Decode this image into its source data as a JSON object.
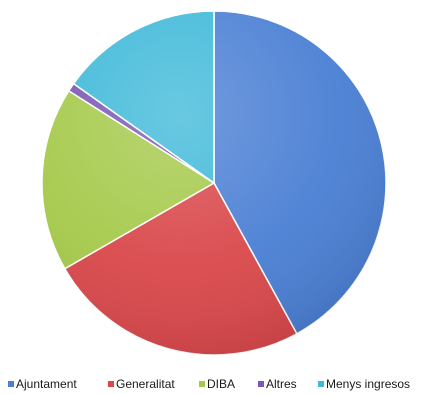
{
  "chart_data": {
    "type": "pie",
    "title": "",
    "legend_position": "bottom",
    "start_angle_deg": 0,
    "direction": "clockwise",
    "slices": [
      {
        "label": "Ajuntament",
        "value": 42.0,
        "color": "#4a7fd4"
      },
      {
        "label": "Generalitat",
        "value": 24.7,
        "color": "#d9474a"
      },
      {
        "label": "DIBA",
        "value": 17.3,
        "color": "#a5c94a"
      },
      {
        "label": "Altres",
        "value": 0.8,
        "color": "#7b57b5"
      },
      {
        "label": "Menys ingresos",
        "value": 15.2,
        "color": "#3fb9d9"
      }
    ]
  }
}
